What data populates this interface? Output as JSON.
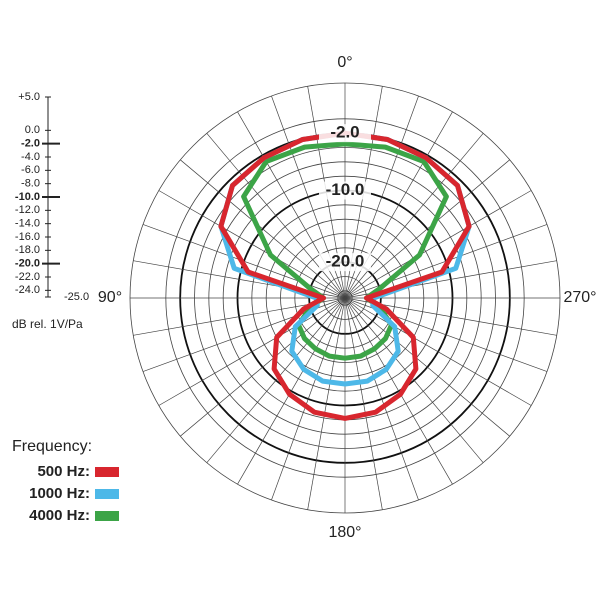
{
  "chart_data": {
    "type": "polar",
    "rlim": [
      -25,
      5
    ],
    "scale_ticks": [
      {
        "value": 5,
        "label": "+5.0"
      },
      {
        "value": 0,
        "label": "0.0"
      },
      {
        "value": -2,
        "label": "-2.0"
      },
      {
        "value": -4,
        "label": "-4.0"
      },
      {
        "value": -6,
        "label": "-6.0"
      },
      {
        "value": -8,
        "label": "-8.0"
      },
      {
        "value": -10,
        "label": "-10.0"
      },
      {
        "value": -12,
        "label": "-12.0"
      },
      {
        "value": -14,
        "label": "-14.0"
      },
      {
        "value": -16,
        "label": "-16.0"
      },
      {
        "value": -18,
        "label": "-18.0"
      },
      {
        "value": -20,
        "label": "-20.0"
      },
      {
        "value": -22,
        "label": "-22.0"
      },
      {
        "value": -24,
        "label": "-24.0"
      },
      {
        "value": -25,
        "label": "-25.0"
      }
    ],
    "major_rings": [
      {
        "value": -2,
        "label": "-2.0"
      },
      {
        "value": -10,
        "label": "-10.0"
      },
      {
        "value": -20,
        "label": "-20.0"
      }
    ],
    "unit_label": "dB rel. 1V/Pa",
    "theta_ticks": [
      {
        "value": 0,
        "label": "0°"
      },
      {
        "value": 90,
        "label": "90°"
      },
      {
        "value": 180,
        "label": "180°"
      },
      {
        "value": 270,
        "label": "270°"
      }
    ],
    "legend_title": "Frequency:",
    "angles": [
      0,
      15,
      30,
      45,
      60,
      75,
      90,
      105,
      120,
      135,
      150,
      165,
      180,
      195,
      210,
      225,
      240,
      255,
      270,
      285,
      300,
      315,
      330,
      345
    ],
    "series": [
      {
        "name": "500 Hz:",
        "color": "#d8262e",
        "values": [
          -2,
          -2.1,
          -2.4,
          -2.8,
          -5,
          -11,
          -22,
          -19,
          -14,
          -11,
          -9.5,
          -8.5,
          -8.2,
          -8.5,
          -9.5,
          -11,
          -14,
          -19,
          -22,
          -11,
          -5,
          -2.8,
          -2.4,
          -2.1
        ]
      },
      {
        "name": "1000 Hz:",
        "color": "#4db8e8",
        "values": [
          -2,
          -2.1,
          -2.4,
          -2.8,
          -5,
          -9,
          -21,
          -21,
          -17,
          -14.5,
          -13.5,
          -13,
          -13,
          -13,
          -13.5,
          -14.5,
          -17,
          -21,
          -21,
          -9,
          -5,
          -2.8,
          -2.4,
          -2.1
        ]
      },
      {
        "name": "4000 Hz:",
        "color": "#3ca447",
        "values": [
          -3.5,
          -3.2,
          -3,
          -5,
          -13,
          -20,
          -22,
          -20,
          -17.5,
          -17,
          -16.8,
          -16.6,
          -16.6,
          -16.6,
          -16.8,
          -17,
          -17.5,
          -20,
          -22,
          -20,
          -13,
          -5,
          -3,
          -3.2
        ]
      }
    ]
  }
}
